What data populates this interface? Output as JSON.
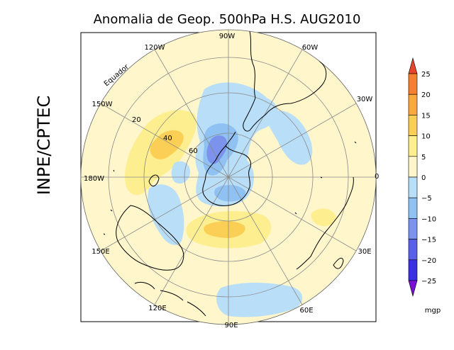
{
  "title": "Anomalia de Geop. 500hPa H.S. AUG2010",
  "side_label": "INPE/CPTEC",
  "equator_label": "Equador",
  "lon_labels": {
    "top": "90W",
    "upper_left": "120W",
    "upper_right": "60W",
    "left_upper": "150W",
    "right_upper": "30W",
    "left": "180W",
    "right": "0",
    "left_lower": "150E",
    "right_lower": "30E",
    "lower_left": "120E",
    "lower_right": "60E",
    "bottom": "90E"
  },
  "lat_labels": [
    "20",
    "40",
    "60"
  ],
  "colorbar": {
    "unit": "mgp",
    "ticks": [
      "25",
      "20",
      "15",
      "10",
      "5",
      "0",
      "−5",
      "−10",
      "−15",
      "−20",
      "−25"
    ],
    "colors": [
      "#e8462a",
      "#f57f33",
      "#f9a93d",
      "#fbcf55",
      "#fdef8f",
      "#fff6cc",
      "#b9def7",
      "#8fc1f2",
      "#7b93ec",
      "#5a5fe8",
      "#3b2fe4",
      "#7a10d6"
    ]
  },
  "colors": {
    "background": "#fff6cc",
    "positive_weak": "#fdef8f",
    "positive_mid": "#fbcf55",
    "negative_weak": "#b9def7",
    "negative_mid": "#8fc1f2",
    "negative_strong": "#7b93ec"
  }
}
